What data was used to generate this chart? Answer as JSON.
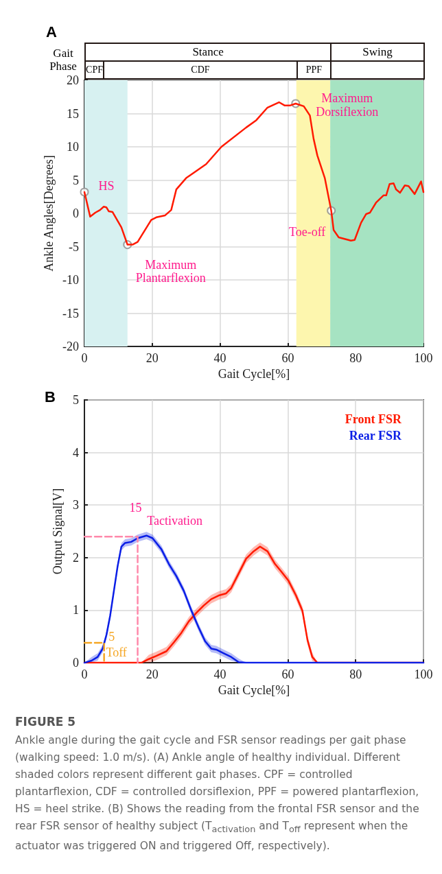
{
  "chart_data": [
    {
      "type": "line",
      "title": "A",
      "xlabel": "Gait Cycle[%]",
      "ylabel": "Ankle Angles[Degrees]",
      "xlim": [
        0,
        100
      ],
      "ylim": [
        -20,
        20
      ],
      "xticks": [
        0,
        20,
        40,
        60,
        80,
        100
      ],
      "yticks": [
        -20,
        -15,
        -10,
        -5,
        0,
        5,
        10,
        15,
        20
      ],
      "grid": true,
      "marker": "none",
      "line_style": "solid",
      "bands": [
        {
          "axis": "x",
          "from": 0,
          "to": 12.7,
          "color": "#d7f1f1"
        },
        {
          "axis": "x",
          "from": 62.5,
          "to": 72.5,
          "color": "#fdf6ae"
        },
        {
          "axis": "x",
          "from": 72.5,
          "to": 100,
          "color": "#a6e3c2"
        }
      ],
      "annotations": [
        "Gait Phase",
        "Stance",
        "Swing",
        "CPF",
        "CDF",
        "PPF",
        {
          "text": "HS",
          "x": 0,
          "y": 3.2
        },
        {
          "text": "Maximum Plantarflexion",
          "x": 12.7,
          "y": -4.7
        },
        {
          "text": "Maximum Dorsiflexion",
          "x": 62.3,
          "y": 16.5
        },
        {
          "text": "Toe-off",
          "x": 72.8,
          "y": 0.4
        }
      ],
      "series": [
        {
          "color": "#ff1a00",
          "x": [
            0,
            1.7,
            3.2,
            4.6,
            5.7,
            6.5,
            7.2,
            8.3,
            10.9,
            12.7,
            14.2,
            15.7,
            19.7,
            21.2,
            23.8,
            25.6,
            27.1,
            30,
            35.9,
            40.4,
            47.7,
            50.7,
            54,
            57.4,
            59.1,
            60.6,
            62.3,
            64.7,
            66.5,
            67.6,
            68.7,
            70.9,
            72.8,
            73.5,
            75,
            78.6,
            79.7,
            81.6,
            83.1,
            84.2,
            86,
            88.2,
            89,
            90,
            91.2,
            91.9,
            93.1,
            94.5,
            95.6,
            97.4,
            99.3,
            100
          ],
          "values": [
            3.2,
            -0.5,
            0.1,
            0.5,
            1.0,
            0.9,
            0.3,
            0.2,
            -2.1,
            -4.7,
            -4.7,
            -4.3,
            -1.0,
            -0.6,
            -0.3,
            0.5,
            3.6,
            5.3,
            7.4,
            10,
            12.9,
            14,
            15.9,
            16.7,
            16.2,
            16.2,
            16.5,
            16.1,
            14.7,
            11.2,
            8.7,
            5.3,
            0.4,
            -2.5,
            -3.6,
            -4.1,
            -4.0,
            -1.4,
            -0.1,
            0.1,
            1.6,
            2.7,
            2.7,
            4.4,
            4.5,
            3.6,
            3.1,
            4.2,
            4.1,
            2.9,
            4.8,
            3.2
          ]
        },
        {
          "type": "scatter",
          "marker": "circle",
          "color": "#8c8c8c",
          "x": [
            0,
            12.7,
            62.3,
            72.8
          ],
          "values": [
            3.2,
            -4.7,
            16.5,
            0.4
          ]
        }
      ]
    },
    {
      "type": "line",
      "title": "B",
      "xlabel": "Gait Cycle[%]",
      "ylabel": "Output Signal[V]",
      "xlim": [
        0,
        100
      ],
      "ylim": [
        0,
        5
      ],
      "xticks": [
        0,
        20,
        40,
        60,
        80,
        100
      ],
      "yticks": [
        0,
        1,
        2,
        3,
        4,
        5
      ],
      "grid": true,
      "marker": "none",
      "legend": "top right",
      "annotations": [
        {
          "text": "15",
          "x": 15.7,
          "y": 2.4
        },
        {
          "text": "Tactivation",
          "x": 15.7,
          "y": 2.4
        },
        {
          "text": "5",
          "x": 5.8,
          "y": 0.38
        },
        {
          "text": "Toff",
          "x": 5.8,
          "y": 0.38
        },
        "FIGURE 5",
        "Ankle angle during the gait cycle and FSR sensor readings per gait phase (walking speed: 1.0 m/s). (A) Ankle angle of healthy individual. Different shaded colors represent different gait phases. CPF = controlled plantarflexion, CDF = controlled dorsiflexion, PPF = powered plantarflexion, HS = heel strike. (B) Shows the reading from the frontal FSR sensor and the rear FSR sensor of healthy subject (T$_{activation}$ and T$_{off}$ represent when the actuator was triggered ON and triggered Off, respectively)."
      ],
      "series": [
        {
          "name": "Front FSR",
          "color": "#ff1a00",
          "x": [
            0,
            16.8,
            19,
            21.2,
            24.2,
            26.4,
            28.6,
            30.8,
            33,
            35.2,
            37.4,
            39.6,
            41.8,
            43.3,
            45.5,
            47.7,
            49.9,
            51.8,
            54,
            56.2,
            58,
            60.2,
            62.4,
            64.3,
            65.8,
            67.2,
            68.7,
            100
          ],
          "values": [
            0,
            0,
            0.07,
            0.13,
            0.22,
            0.39,
            0.57,
            0.79,
            0.95,
            1.09,
            1.21,
            1.28,
            1.32,
            1.42,
            1.7,
            1.98,
            2.12,
            2.21,
            2.12,
            1.88,
            1.74,
            1.56,
            1.28,
            0.99,
            0.43,
            0.11,
            0,
            0
          ],
          "lower": [
            0,
            0,
            0,
            0.05,
            0.14,
            0.31,
            0.49,
            0.71,
            0.87,
            1.01,
            1.13,
            1.2,
            1.24,
            1.34,
            1.62,
            1.9,
            2.04,
            2.13,
            2.04,
            1.8,
            1.66,
            1.48,
            1.2,
            0.91,
            0.35,
            0.03,
            0,
            0
          ],
          "upper": [
            0,
            0,
            0.15,
            0.21,
            0.3,
            0.47,
            0.65,
            0.87,
            1.03,
            1.17,
            1.29,
            1.36,
            1.4,
            1.5,
            1.78,
            2.06,
            2.2,
            2.29,
            2.2,
            1.96,
            1.82,
            1.64,
            1.36,
            1.07,
            0.51,
            0.19,
            0,
            0
          ]
        },
        {
          "name": "Rear FSR",
          "color": "#0a1ee6",
          "x": [
            0,
            2.1,
            3.9,
            5.4,
            6.5,
            7.6,
            8.7,
            9.8,
            10.9,
            12,
            13.8,
            15.7,
            18.3,
            20.1,
            22.7,
            24.9,
            27.1,
            29.3,
            31.5,
            33.7,
            35.6,
            37.4,
            38.9,
            41.1,
            43.3,
            45.5,
            47.7,
            100
          ],
          "values": [
            0,
            0.04,
            0.11,
            0.27,
            0.53,
            0.9,
            1.37,
            1.84,
            2.21,
            2.28,
            2.3,
            2.37,
            2.42,
            2.37,
            2.16,
            1.88,
            1.65,
            1.37,
            1.0,
            0.67,
            0.41,
            0.27,
            0.25,
            0.18,
            0.11,
            0.01,
            0,
            0
          ],
          "lower": [
            0,
            0,
            0.04,
            0.2,
            0.46,
            0.83,
            1.3,
            1.77,
            2.14,
            2.21,
            2.23,
            2.3,
            2.35,
            2.3,
            2.09,
            1.81,
            1.58,
            1.3,
            0.93,
            0.6,
            0.34,
            0.2,
            0.18,
            0.11,
            0.04,
            0,
            0,
            0
          ],
          "upper": [
            0,
            0.11,
            0.18,
            0.34,
            0.6,
            0.97,
            1.44,
            1.91,
            2.28,
            2.35,
            2.37,
            2.44,
            2.49,
            2.44,
            2.23,
            1.95,
            1.72,
            1.44,
            1.07,
            0.74,
            0.48,
            0.34,
            0.32,
            0.25,
            0.18,
            0.08,
            0,
            0
          ]
        },
        {
          "type": "line",
          "color": "#ff88aa",
          "line_style": "dashed",
          "x": [
            0,
            15.7,
            15.7
          ],
          "values": [
            2.4,
            2.4,
            0
          ]
        },
        {
          "type": "line",
          "color": "#f5a623",
          "line_style": "dashed",
          "x": [
            0,
            5.8,
            5.8
          ],
          "values": [
            0.38,
            0.38,
            0
          ]
        }
      ]
    }
  ]
}
